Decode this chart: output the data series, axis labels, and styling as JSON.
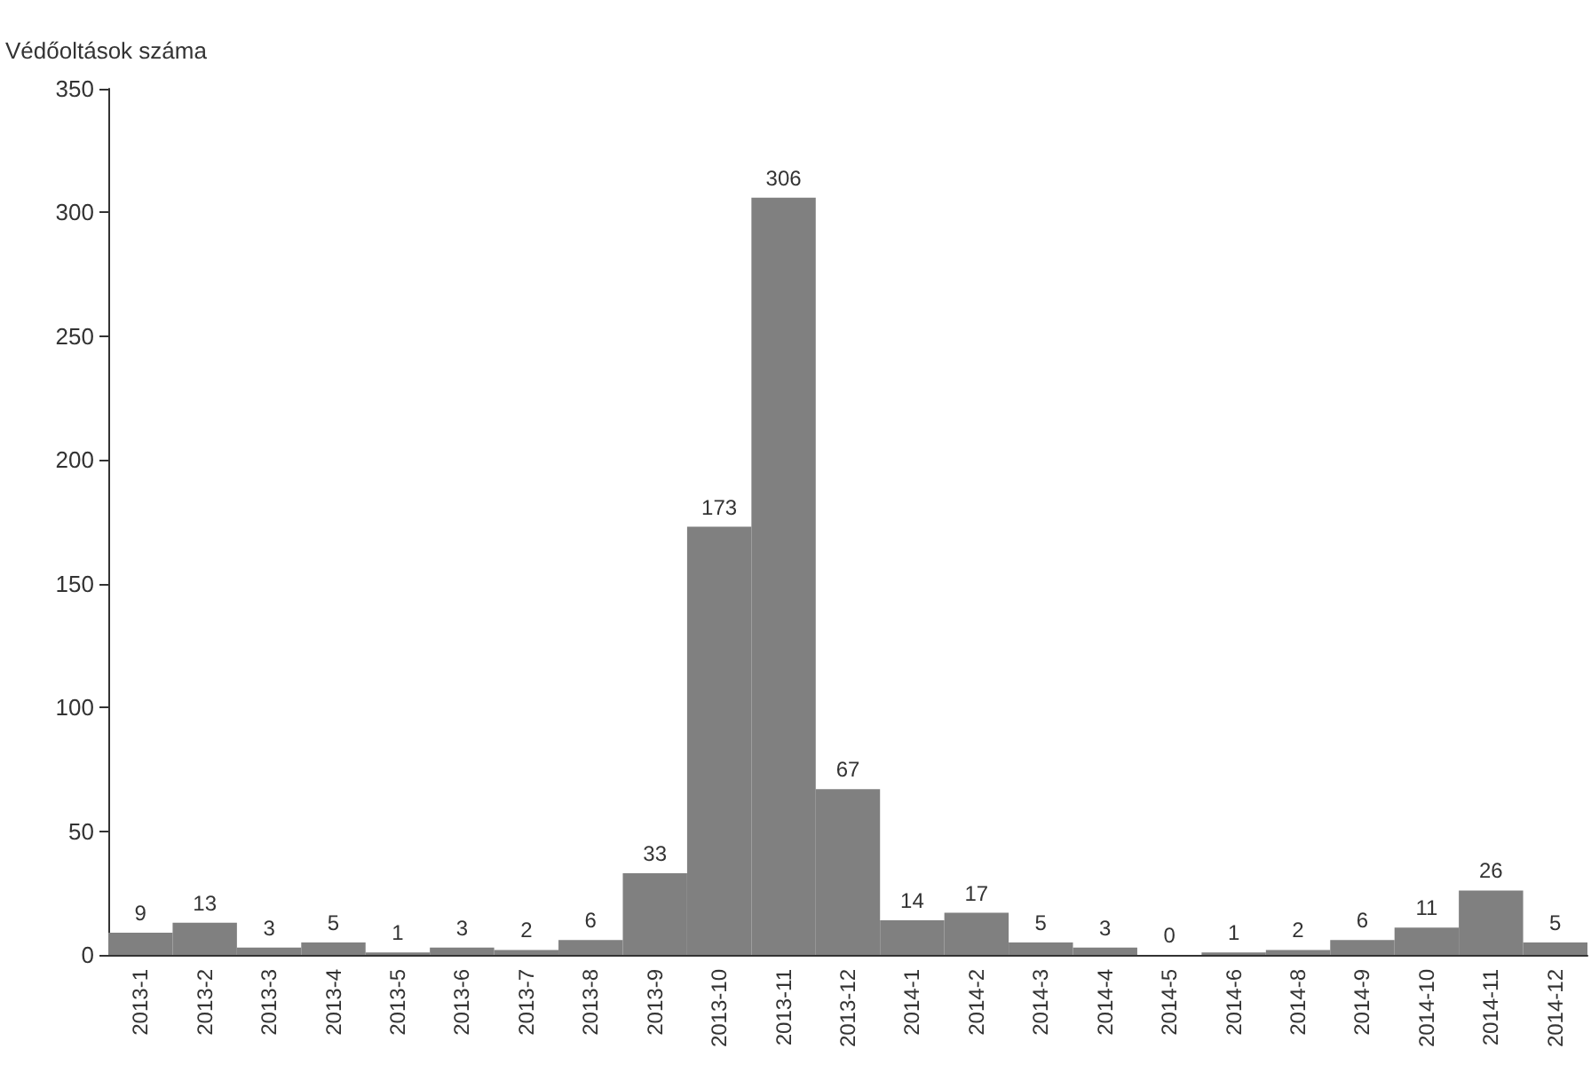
{
  "chart_data": {
    "type": "bar",
    "ylabel": "Védőoltások száma",
    "categories": [
      "2013-1",
      "2013-2",
      "2013-3",
      "2013-4",
      "2013-5",
      "2013-6",
      "2013-7",
      "2013-8",
      "2013-9",
      "2013-10",
      "2013-11",
      "2013-12",
      "2014-1",
      "2014-2",
      "2014-3",
      "2014-4",
      "2014-5",
      "2014-6",
      "2014-8",
      "2014-9",
      "2014-10",
      "2014-11",
      "2014-12"
    ],
    "values": [
      9,
      13,
      3,
      5,
      1,
      3,
      2,
      6,
      33,
      173,
      306,
      67,
      14,
      17,
      5,
      3,
      0,
      1,
      2,
      6,
      11,
      26,
      5
    ],
    "color": "#808080",
    "ylim": [
      0,
      350
    ],
    "yticks": [
      0,
      50,
      100,
      150,
      200,
      250,
      300,
      350
    ],
    "data_labels": true,
    "grid": false
  }
}
